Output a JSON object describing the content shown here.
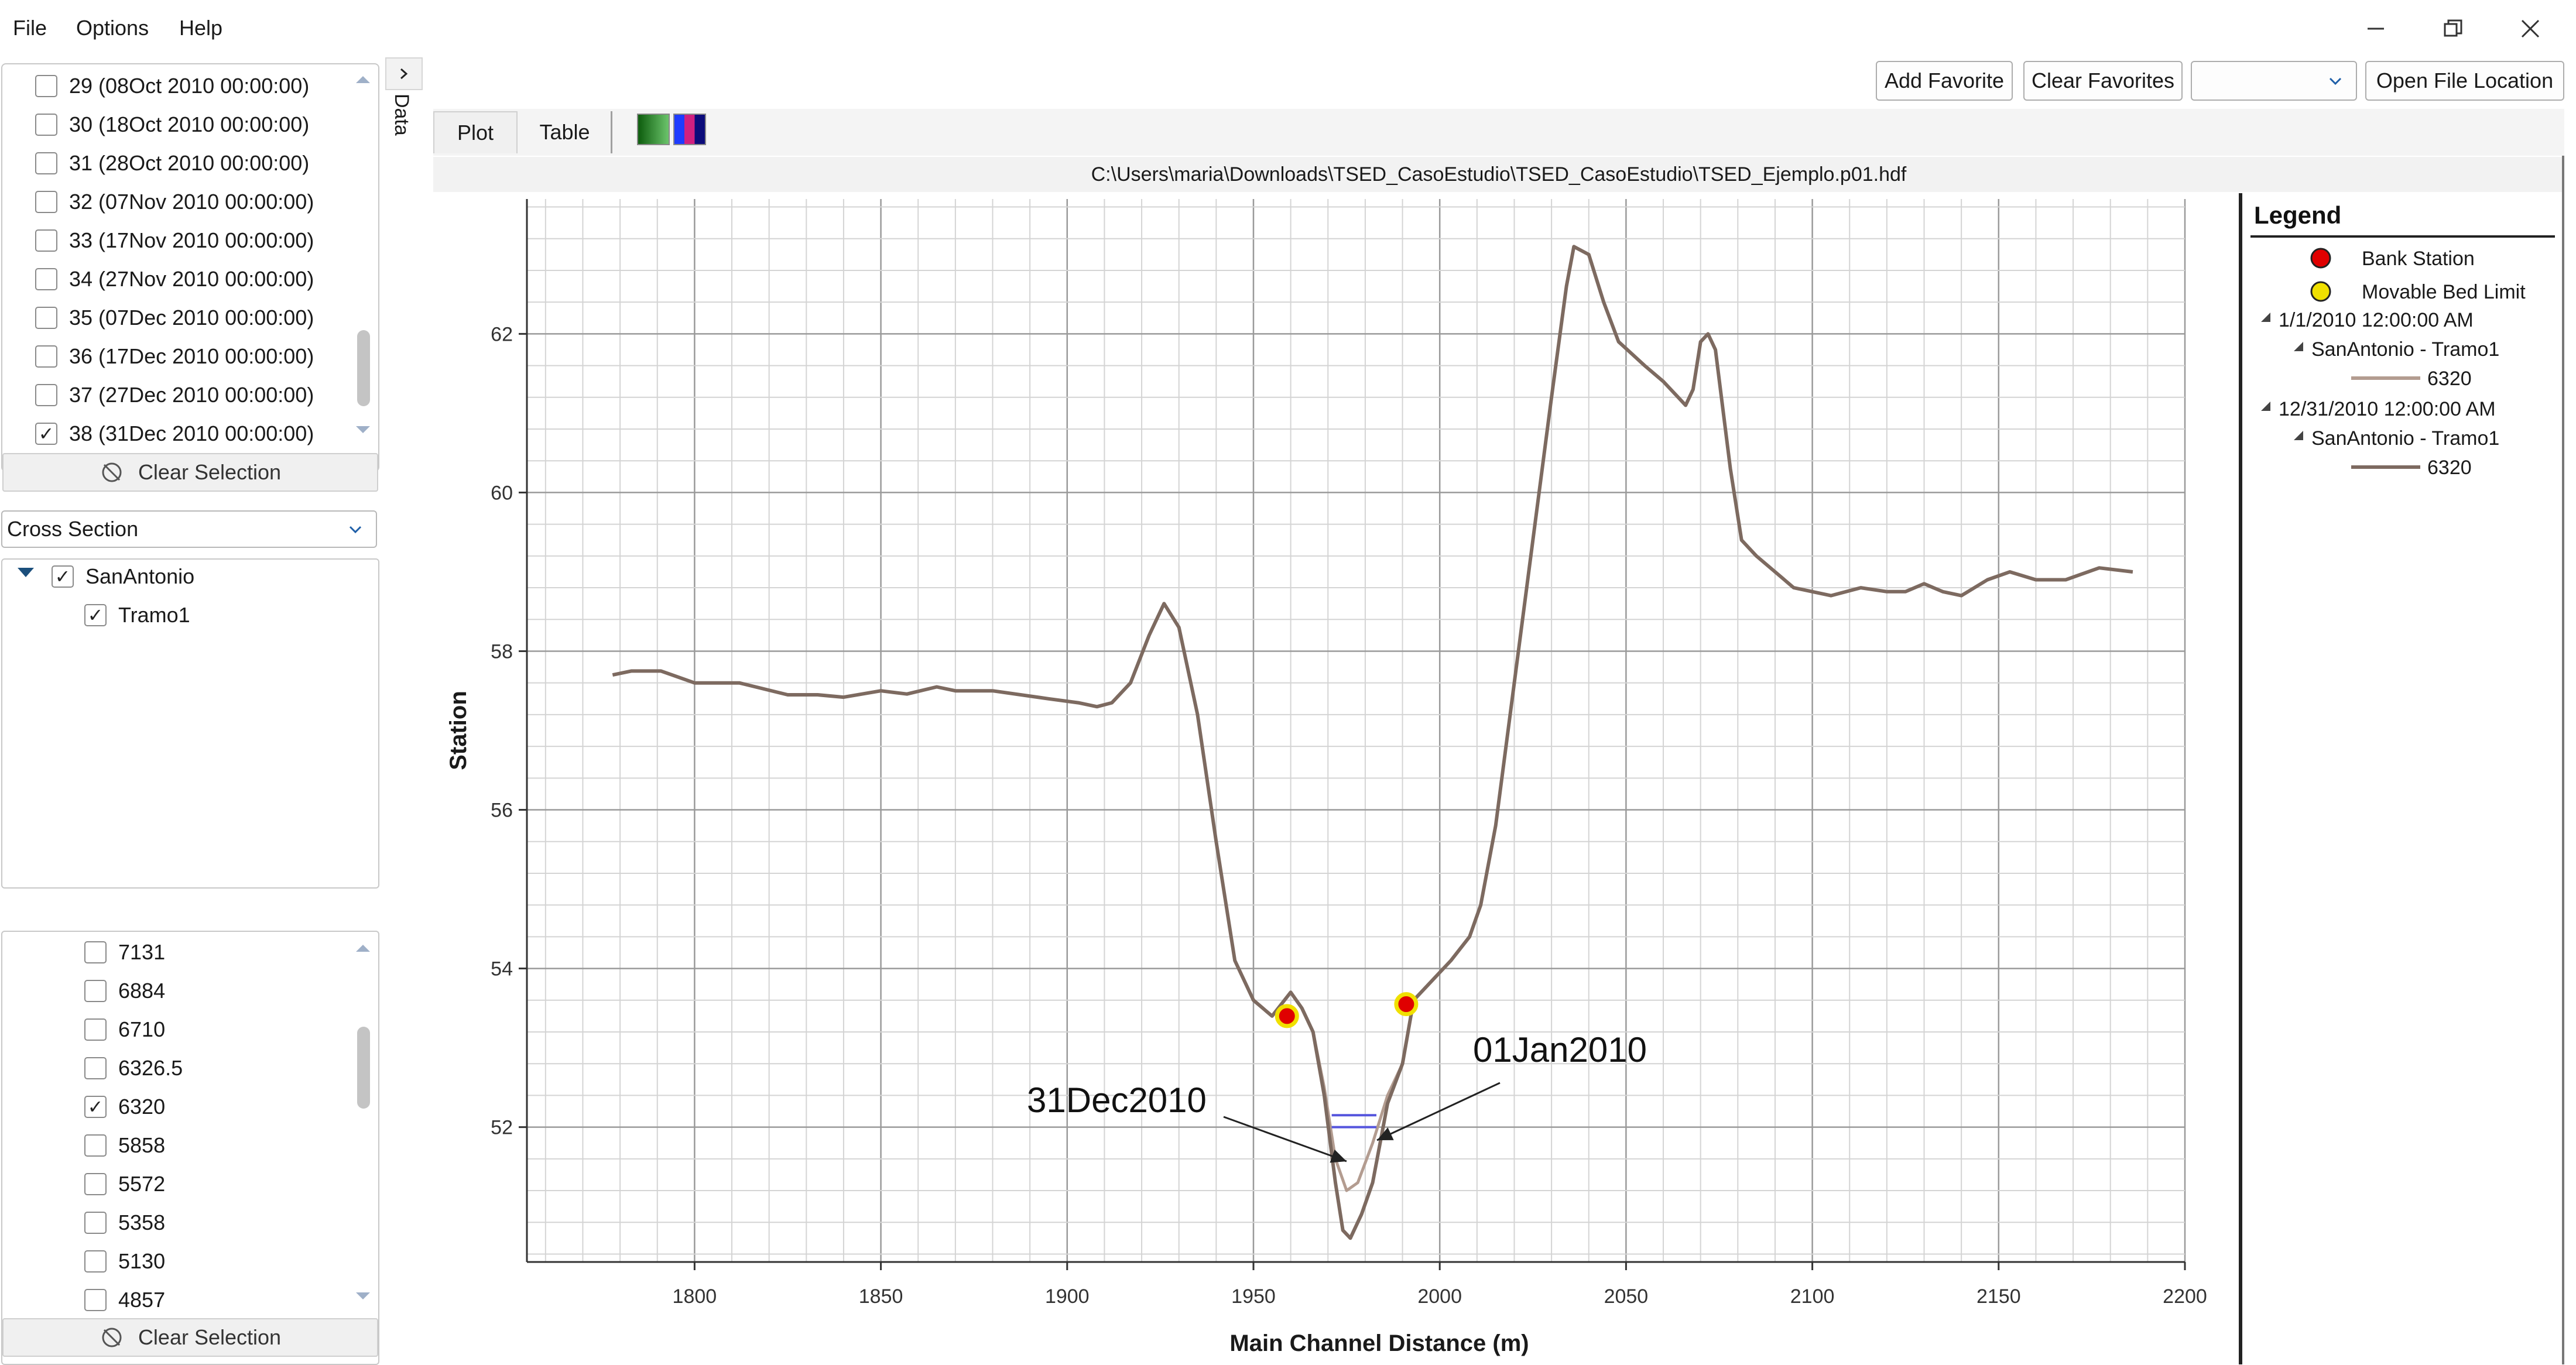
{
  "menu": {
    "file": "File",
    "options": "Options",
    "help": "Help"
  },
  "side_toggle": {
    "label": "Data"
  },
  "time_list": {
    "items": [
      {
        "label": "29 (08Oct 2010 00:00:00)",
        "checked": false
      },
      {
        "label": "30 (18Oct 2010 00:00:00)",
        "checked": false
      },
      {
        "label": "31 (28Oct 2010 00:00:00)",
        "checked": false
      },
      {
        "label": "32 (07Nov 2010 00:00:00)",
        "checked": false
      },
      {
        "label": "33 (17Nov 2010 00:00:00)",
        "checked": false
      },
      {
        "label": "34 (27Nov 2010 00:00:00)",
        "checked": false
      },
      {
        "label": "35 (07Dec 2010 00:00:00)",
        "checked": false
      },
      {
        "label": "36 (17Dec 2010 00:00:00)",
        "checked": false
      },
      {
        "label": "37 (27Dec 2010 00:00:00)",
        "checked": false
      },
      {
        "label": "38 (31Dec 2010 00:00:00)",
        "checked": true
      }
    ],
    "clear_label": "Clear Selection"
  },
  "type_select": {
    "value": "Cross Section"
  },
  "tree": {
    "river": {
      "label": "SanAntonio",
      "checked": true
    },
    "reach": {
      "label": "Tramo1",
      "checked": true
    }
  },
  "station_list": {
    "items": [
      {
        "label": "7131",
        "checked": false
      },
      {
        "label": "6884",
        "checked": false
      },
      {
        "label": "6710",
        "checked": false
      },
      {
        "label": "6326.5",
        "checked": false
      },
      {
        "label": "6320",
        "checked": true
      },
      {
        "label": "5858",
        "checked": false
      },
      {
        "label": "5572",
        "checked": false
      },
      {
        "label": "5358",
        "checked": false
      },
      {
        "label": "5130",
        "checked": false
      },
      {
        "label": "4857",
        "checked": false
      }
    ],
    "clear_label": "Clear Selection"
  },
  "toolbar": {
    "add_favorite": "Add Favorite",
    "clear_favorites": "Clear Favorites",
    "favorites_select": "",
    "open_file_location": "Open File Location"
  },
  "tabs": {
    "plot": "Plot",
    "table": "Table"
  },
  "file_path": "C:\\Users\\maria\\Downloads\\TSED_CasoEstudio\\TSED_CasoEstudio\\TSED_Ejemplo.p01.hdf",
  "colors": {
    "series_2010_01": "#b39c90",
    "series_2010_12": "#7d6a60",
    "bank_station": "#e00000",
    "movable_bed": "#f0e000",
    "water": "#5555dd"
  },
  "legend": {
    "title": "Legend",
    "bank_station": "Bank Station",
    "movable_bed": "Movable Bed Limit",
    "groups": [
      {
        "time": "1/1/2010 12:00:00 AM",
        "reach": "SanAntonio - Tramo1",
        "station": "6320"
      },
      {
        "time": "12/31/2010 12:00:00 AM",
        "reach": "SanAntonio - Tramo1",
        "station": "6320"
      }
    ]
  },
  "annotations": {
    "left": "31Dec2010",
    "right": "01Jan2010"
  },
  "chart_data": {
    "type": "line",
    "title": "",
    "xlabel": "Main Channel Distance (m)",
    "ylabel": "Station",
    "xlim": [
      1755,
      2200
    ],
    "ylim": [
      50.3,
      63.7
    ],
    "x_ticks": [
      1800,
      1850,
      1900,
      1950,
      2000,
      2050,
      2100,
      2150,
      2200
    ],
    "y_ticks": [
      52,
      54,
      56,
      58,
      60,
      62
    ],
    "grid": true,
    "legend_position": "right",
    "series": [
      {
        "name": "1/1/2010 12:00:00 AM",
        "x": [
          1778,
          1783,
          1791,
          1800,
          1812,
          1825,
          1833,
          1840,
          1850,
          1857,
          1865,
          1870,
          1880,
          1895,
          1903,
          1908,
          1912,
          1917,
          1922,
          1926,
          1930,
          1935,
          1940,
          1945,
          1950,
          1955,
          1960,
          1963,
          1966,
          1969,
          1972,
          1975,
          1978,
          1982,
          1986,
          1990,
          1993,
          1997,
          2003,
          2008,
          2011,
          2015,
          2020,
          2025,
          2030,
          2034,
          2036,
          2040,
          2044,
          2048,
          2055,
          2060,
          2064,
          2066,
          2068,
          2070,
          2072,
          2074,
          2078,
          2081,
          2085,
          2090,
          2095,
          2100,
          2105,
          2113,
          2120,
          2125,
          2130,
          2135,
          2140,
          2147,
          2153,
          2160,
          2168,
          2177,
          2186
        ],
        "y": [
          57.7,
          57.75,
          57.75,
          57.6,
          57.6,
          57.45,
          57.45,
          57.42,
          57.5,
          57.46,
          57.55,
          57.5,
          57.5,
          57.4,
          57.35,
          57.3,
          57.35,
          57.6,
          58.2,
          58.6,
          58.3,
          57.2,
          55.6,
          54.1,
          53.6,
          53.4,
          53.7,
          53.5,
          53.2,
          52.5,
          51.6,
          51.2,
          51.3,
          51.8,
          52.4,
          52.8,
          53.6,
          53.8,
          54.1,
          54.4,
          54.8,
          55.8,
          57.6,
          59.4,
          61.2,
          62.6,
          63.1,
          63.0,
          62.4,
          61.9,
          61.6,
          61.4,
          61.2,
          61.1,
          61.3,
          61.9,
          62.0,
          61.8,
          60.3,
          59.4,
          59.2,
          59.0,
          58.8,
          58.75,
          58.7,
          58.8,
          58.75,
          58.75,
          58.85,
          58.75,
          58.7,
          58.9,
          59.0,
          58.9,
          58.9,
          59.05,
          59.0
        ]
      },
      {
        "name": "12/31/2010 12:00:00 AM",
        "x": [
          1778,
          1783,
          1791,
          1800,
          1812,
          1825,
          1833,
          1840,
          1850,
          1857,
          1865,
          1870,
          1880,
          1895,
          1903,
          1908,
          1912,
          1917,
          1922,
          1926,
          1930,
          1935,
          1940,
          1945,
          1950,
          1955,
          1960,
          1963,
          1966,
          1969,
          1972,
          1974,
          1976,
          1979,
          1982,
          1986,
          1990,
          1993,
          1997,
          2003,
          2008,
          2011,
          2015,
          2020,
          2025,
          2030,
          2034,
          2036,
          2040,
          2044,
          2048,
          2055,
          2060,
          2064,
          2066,
          2068,
          2070,
          2072,
          2074,
          2078,
          2081,
          2085,
          2090,
          2095,
          2100,
          2105,
          2113,
          2120,
          2125,
          2130,
          2135,
          2140,
          2147,
          2153,
          2160,
          2168,
          2177,
          2186
        ],
        "y": [
          57.7,
          57.75,
          57.75,
          57.6,
          57.6,
          57.45,
          57.45,
          57.42,
          57.5,
          57.46,
          57.55,
          57.5,
          57.5,
          57.4,
          57.35,
          57.3,
          57.35,
          57.6,
          58.2,
          58.6,
          58.3,
          57.2,
          55.6,
          54.1,
          53.6,
          53.4,
          53.7,
          53.5,
          53.2,
          52.4,
          51.3,
          50.7,
          50.6,
          50.9,
          51.3,
          52.3,
          52.8,
          53.6,
          53.8,
          54.1,
          54.4,
          54.8,
          55.8,
          57.6,
          59.4,
          61.2,
          62.6,
          63.1,
          63.0,
          62.4,
          61.9,
          61.6,
          61.4,
          61.2,
          61.1,
          61.3,
          61.9,
          62.0,
          61.8,
          60.3,
          59.4,
          59.2,
          59.0,
          58.8,
          58.75,
          58.7,
          58.8,
          58.75,
          58.75,
          58.85,
          58.75,
          58.7,
          58.9,
          59.0,
          58.9,
          58.9,
          59.05,
          59.0
        ]
      }
    ],
    "bank_stations": [
      {
        "x": 1959,
        "y": 53.4
      },
      {
        "x": 1991,
        "y": 53.55
      }
    ],
    "water_levels": [
      {
        "x": [
          1971,
          1983
        ],
        "y": 52.15
      },
      {
        "x": [
          1971,
          1983
        ],
        "y": 52.0
      }
    ]
  }
}
